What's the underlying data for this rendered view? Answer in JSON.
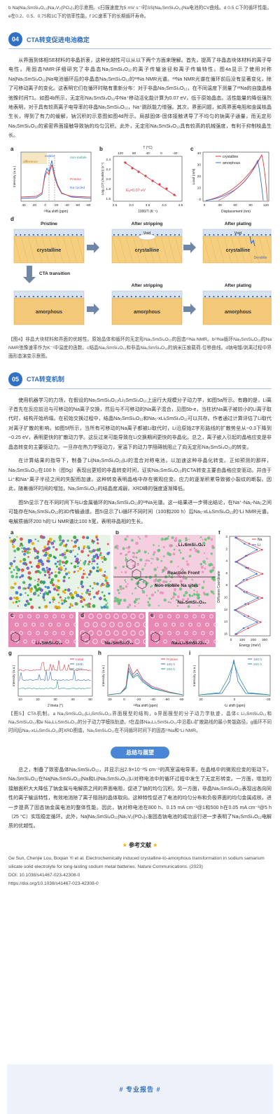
{
  "intro_caption": "b Na|Na₅SmSi₄O₁₂|Na₃V₂(PO₄)₃的示意图。c扫描速度为5 mV s⁻¹时SS|Na₅SmSi₄O₁₂|Na电池的CV曲线。d 0.5 C下的循环性能。e在0.2、0.5、0.75和1C下的倍率性能。f 2C速率下的长期循环寿命。",
  "section4": {
    "number": "04",
    "title": "CTA转变促进电池稳定",
    "paragraph": "从界面到体相SE材料的非晶折衷，这种优越性可以从以下两个方面来理解。首先，提高了非晶态块体材料的离子导电性。用固态NMR详细研究了非晶态Na₅SmSi₄O₁₂的离子传输途径和离子传输特性。图4a显示了使用对称Na|Na₅SmSi₄O₁₂|Na电池循环后的非晶态Na₅SmSi₄O₁₂的²³Na NMR光谱。²³Na NMR光谱在循环前后没有显著变化，除了可移动离子的变化。这表明它们在循环时略有重新分布：对于非晶Na₅SmSi₄O₁₂，在不同温度下测量了²³Na的自旋晶格弛豫时间T1。如图4b所示，无定形Na₅SmSi₄O₁₂中Na⁺移动活化能计算为0.07 eV，低于原始晶态。活性能量的降低强烈地表明，对于具有较高离子电导率的非晶Na₅SmSi₄O₁₂，Na⁺跳跃能力增强。其次，界面问题，如高界面电阻和金属枝晶生长，得到了有力的缓解，钠沉积的示意图如图4d所示。局部固体-固体接触诱导了不均匀的钠离子通量，而无定形Na₅SmSi₄O₁₂的紧密界面接触导致钠的均匀沉积。此外，无定形Na₅SmSi₄O₁₂具有较高的机械强度，有利于抑制枝晶生长。"
  },
  "figure4": {
    "a": {
      "label": "a",
      "difference": "difference",
      "mobile": "mobile",
      "non_mobile": "non-mobile",
      "pristine": "Pristine",
      "cycled": "Na cycled",
      "ylabel": "Intensity (a.u.)",
      "xlabel": "²³Na shift (ppm)",
      "xticks": [
        "40",
        "20",
        "0",
        "-20",
        "-40",
        "-60",
        "-80"
      ]
    },
    "b": {
      "label": "b",
      "top_label": "T (°C)",
      "top_ticks": [
        "120",
        "80",
        "40",
        "0",
        "-40"
      ],
      "ylabel": "Log₁₀(1/T₁(mobile)) (s⁻¹)",
      "yticks": [
        "2.4",
        "2.2",
        "2.0",
        "1.8",
        "1.6"
      ],
      "xlabel": "1000/T (K⁻¹)",
      "xticks": [
        "2.5",
        "3.0",
        "3.5",
        "4.0",
        "4.5"
      ],
      "annotation": "Eₐ=0.07 eV"
    },
    "c": {
      "label": "c",
      "crystalline": "crystalline",
      "amorphous": "amorphous",
      "ylabel": "Load (mN)",
      "yticks": [
        "40",
        "30",
        "20",
        "10",
        "0"
      ],
      "xlabel": "Displacement (nm)",
      "xticks": [
        "0",
        "30",
        "60",
        "90",
        "120"
      ]
    },
    "d": {
      "label": "d",
      "pristine": "Pristine",
      "stripping": "After stripping",
      "plating": "After plating",
      "crystalline": "crystalline",
      "void": "Void",
      "dendrite": "Dendrite",
      "transition": "CTA transition",
      "amorphous": "amorphous"
    },
    "caption": "【图4】非晶大块材料和界面的优越性。原始晶体和循环的无定形Na₅SmSi₄O₁₂的固态²³Na NMR。b²³Na循环Na₅SmSi₄O₁₂的Na NMR弛豫速率作为K⁻¹中温度的函数。c结晶Na₅SmSi₄O₁₂和非晶Na₅SmSi₄O₁₂的纳米压痕载荷-位移曲线。d钠电镀/剥离过程中界面形态演变示意图。"
  },
  "section5": {
    "number": "05",
    "title": "CTA转变机制",
    "paragraphs": [
      "使用机器学习的力场，在假设的Na₅SmSi₄O₁₂/Li₃SmSi₄O₁₂上运行大规模分子动力学，如图5a所示。有趣的是，Li离子首先在反应前沿与可移动的Na离子交换，然后与不可移动的Na离子混合，见图5b-e，当柱状Na离子被较小的Li离子取代时，结构开始坍塌。在初始交换过程中，结晶Na₅SmSi₄O₁₂和Na₅-xLiₓSmSi₄O₁₂可以共存。作者通过计算评估了Li取代对离子扩散的影响。如图5f所示，当所有可移动的Na离子都被Li取代时，Li沿原始Z字形路线的扩散势垒从~0.3下降到~0.25 eV，表明更快的扩散动力学。这反过来可能导致在Li交换期间更快的非晶化。总之，离子嵌入引起的晶格应变是非晶态转变的主要驱动力。一旦存在热力学驱动力，室温下的动力学阻碍就阻止了向无定形Na₅SmSi₄O₁₂的转变。",
      "在计算结果的指导下，制备了Li|Na₅SmSi₄O₁₂|Li的混合对称电池，以加速这种非晶化转变。正如预测的那样，Na₅SmSi₄O₁₂在100 h（图5g）表现出更短的非晶转变时间，证实Na₅SmSi₄O₁₂的CTA转变主要由晶格应变驱动。并由于Li⁺和Na⁺离子半径之间的失配而加速。这种转变表明晶格中存在微观应变。应力的逐渐积累导致微小裂纹的断裂。因此，随着循环时间的增加，Na₅SmSi₄O₁₂的结晶度减弱，XRD峰的强度逐渐降低。",
      "图5h显示了在不同时间下与Li金属循环的Na₅SmSi₄O₁₂的²³Na光谱。这一结果进一步得出结论，在Na⁺-Na₁-Na₂之间可能存在Na₅SmSi₄O₁₂的3D传输通道。图5i显示了Li循环不同时间（100和200 h）后Na₅-xLiₓSmSi₄O₁₂的⁷Li NMR光谱。电解质循环200 h的⁷Li NMR谱比100 h宽，表明非晶相的生长。"
    ]
  },
  "figure5": {
    "a": {
      "label": "a"
    },
    "b": {
      "label": "b",
      "phase_li": "Li₃SmSi₄O₁₂",
      "front": "Reaction Front",
      "sites": "Non-mobile Na sites",
      "phase_na": "Na₅SmSi₄O₁₂"
    },
    "c": {
      "label": "c",
      "phase": "Li₃SmSi₄O₁₂"
    },
    "d": {
      "label": "d",
      "phase": "Na₅SmSi₄O₁₂"
    },
    "e": {
      "label": "e",
      "phase": "Na₃Li₂SmSi₄O₁₂"
    },
    "f": {
      "label": "f",
      "legend": [
        "Na",
        "Li"
      ],
      "ylabel": "Diffusion Coordinate",
      "yticks": [
        "0",
        "2",
        "4",
        "6",
        "8",
        "10",
        "12",
        "14",
        "16"
      ],
      "xlabel": "Energy (meV)",
      "xticks": [
        "0",
        "100",
        "200",
        "300"
      ]
    },
    "g": {
      "label": "g",
      "legend": [
        "Initial",
        "100h",
        "200h"
      ],
      "ylabel": "Intensity (a.u.)",
      "xlabel": "2 theta (°)",
      "xticks": [
        "10",
        "20",
        "30",
        "40",
        "50"
      ]
    },
    "h": {
      "label": "h",
      "legend": [
        "Pristine",
        "100 h",
        "200 h"
      ],
      "ylabel": "Intensity (a.u.)",
      "xlabel": "²³Na shift (ppm)",
      "xticks": [
        "20",
        "0",
        "-20",
        "-40",
        "-60",
        "-80"
      ]
    },
    "i": {
      "label": "i",
      "legend": [
        "100 h",
        "200 h"
      ],
      "ylabel": "Intensity (a.u.)",
      "xlabel": "⁷Li shift (ppm)",
      "xticks": [
        "20",
        "0",
        "-20"
      ]
    },
    "caption": "【图5】CTA机制。a Na₅SmSi₄O₁₂|Li₃SmSi₄O₁₂界面模型的结构，b界面模型的分子动力学轨迹，晶体c Li₃SmSi₄O₁₂和Na₅SmSi₄O₁₂和e Na₃Li₂SmSi₄O₁₂的分子动力学模拟轨迹。f在晶体Na₃Li₂SmSi₄O₁₂中沿着Li扩散路线的最小势能路径。g循环不同时间后Na₅-xLiₓSmSi₄O₁₂的XRD图谱。Na₅SmSi₄O₁₂在不同循环时间下的固态²³Na和⁷Li NMR。"
  },
  "summary": {
    "title": "总结与展望",
    "paragraph": "总之，制备了致密晶体Na₅SmSi₄O₁₂，并显示出2.9×10⁻³S cm⁻¹的高室温电导率，在晶格中的微观应变的驱动下。Na₅SmSi₄O₁₂在Na|Na₅SmSi₄O₁₂|Na和Li|Na₅SmSi₄O₁₂|Li对称电池中的循环过程中发生了无定形转变。一方面，增加的接触面积大大降低了钠金属与电解质之间的界面电阻，促进了钠的均匀沉积。另一方面，非晶Na₅SmSi₄O₁₂表现出各向同性的离子输运特性，有效地消除了离子阻挡的晶体取向。这种特性促进了电池的均匀分布和负极界面的均匀金属成核，进一步提高了固态钠金属电池的整体性能。因此，钠对称电池在800 h、0.15 mA cm⁻²@1和500 h在0.05 mA cm⁻²@5 h（25 °C）实现稳定循环。此外，Na|Na₅SmSi₄O₁₂|Na₃V₂(PO₄)₃准固态钠电池的成功运行进一步表明了Na₅SmSi₄O₁₂电解质的优越性。"
  },
  "references": {
    "title": "参考文献",
    "citation": "Ge Sun, Chenjie Lou, Boqian Yi et al. Electrochemically induced crystalline-to-amorphous transformation in sodium samarium silicate solid electrolyte for long-lasting sodium metal batteries. Nature Communications. (2023)",
    "doi": "DOI: 10.1038/s41467-023-42308-0",
    "url": "https://doi.org/10.1038/s41467-023-42308-0"
  },
  "footer": "# 专业报告 #"
}
